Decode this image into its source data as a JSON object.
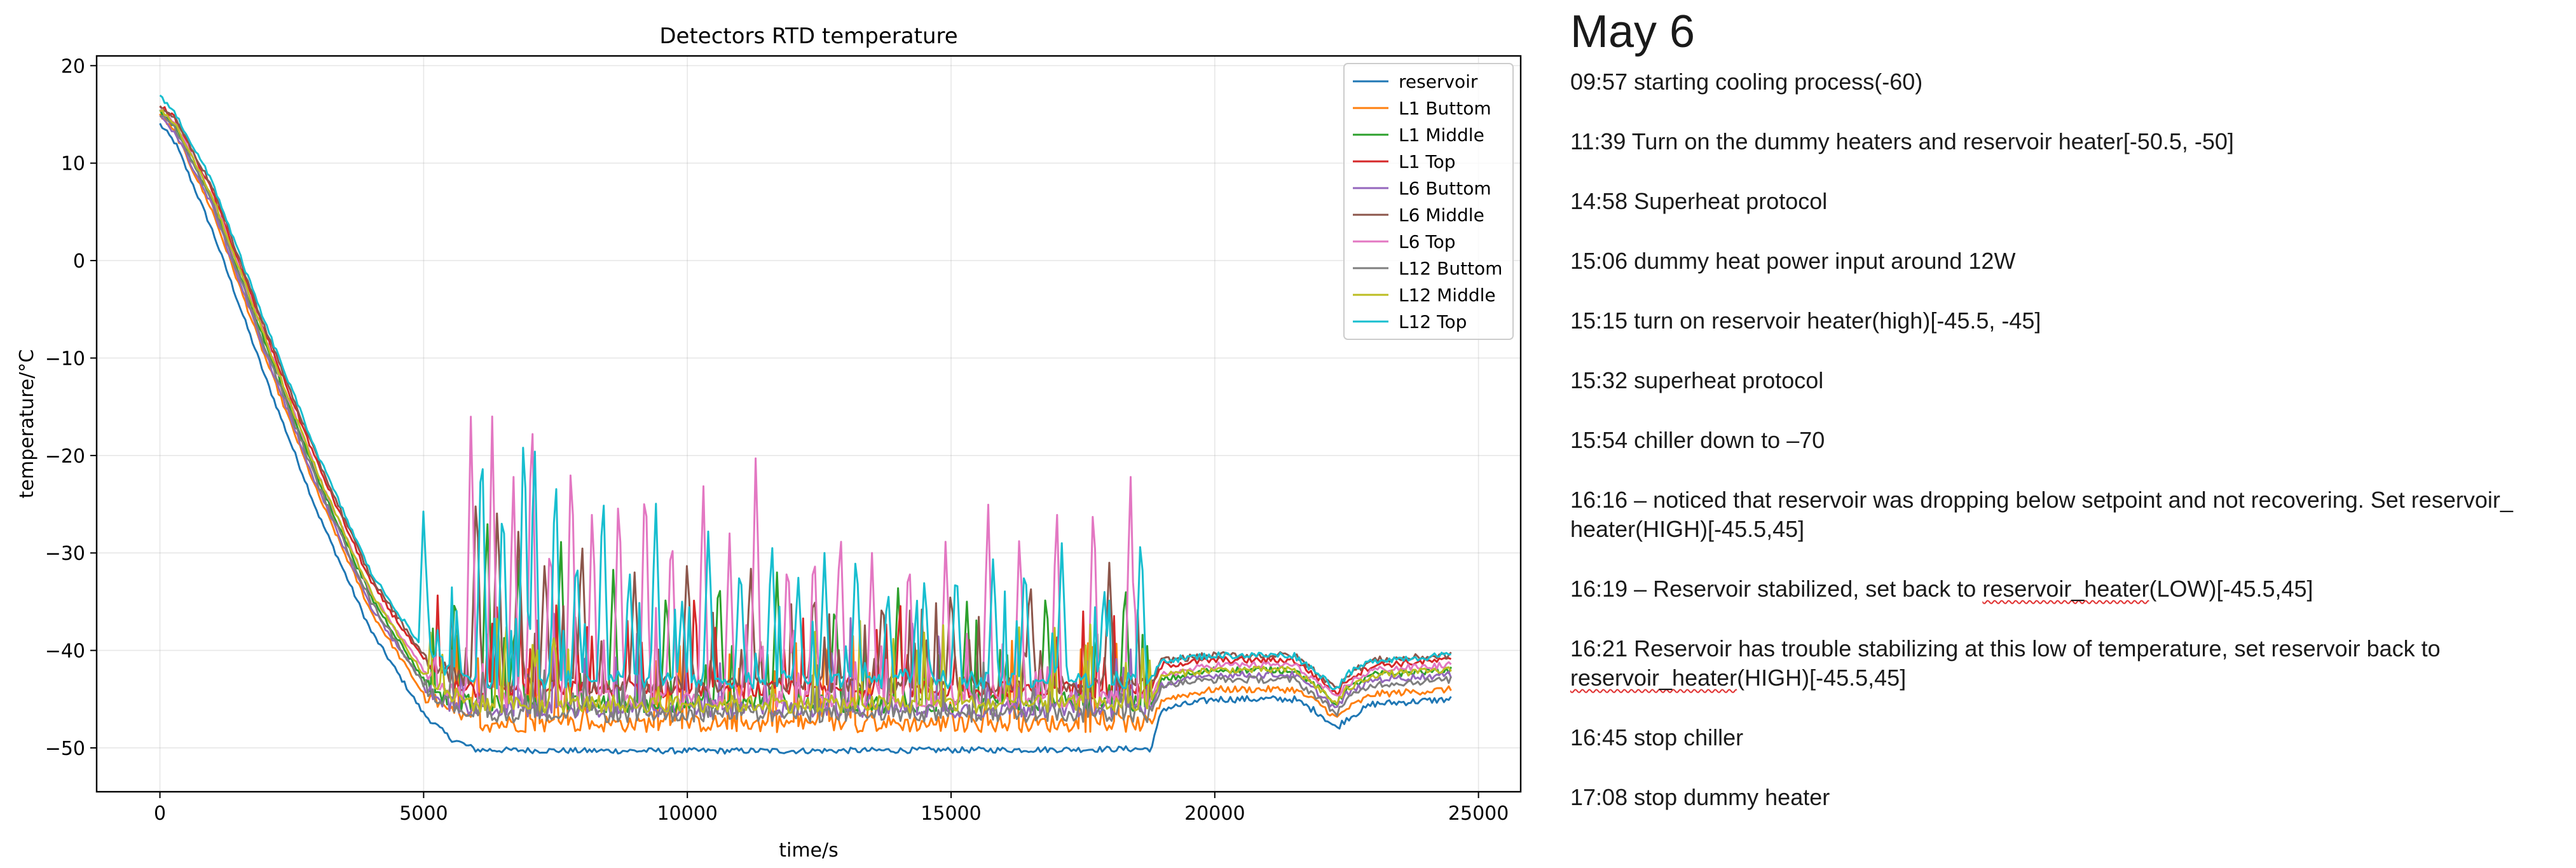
{
  "chart_data": {
    "type": "line",
    "title": "Detectors RTD temperature",
    "xlabel": "time/s",
    "ylabel": "temperature/$^\\circ$C",
    "xlim": [
      -1200,
      25800
    ],
    "ylim": [
      -54.5,
      21
    ],
    "xticks": [
      0,
      5000,
      10000,
      15000,
      20000,
      25000
    ],
    "yticks": [
      20,
      10,
      0,
      -10,
      -20,
      -30,
      -40,
      -50
    ],
    "xtick_labels": [
      "0",
      "5000",
      "10000",
      "15000",
      "20000",
      "25000"
    ],
    "ytick_labels": [
      "20",
      "10",
      "0",
      "−10",
      "−20",
      "−30",
      "−40",
      "−50"
    ],
    "grid": true,
    "legend_position": "top-right",
    "series": [
      {
        "name": "reservoir",
        "color": "#1f77b4",
        "x": [
          0,
          300,
          1000,
          2000,
          3000,
          4000,
          5000,
          5500,
          6000,
          8000,
          12000,
          16000,
          18800,
          19000,
          20000,
          21500,
          22000,
          22300,
          22500,
          23000,
          24500
        ],
        "y": [
          14,
          12,
          3,
          -12,
          -26,
          -38,
          -46.5,
          -49,
          -50.2,
          -50.3,
          -50.3,
          -50.2,
          -50.1,
          -46,
          -45,
          -45,
          -46.5,
          -48,
          -47,
          -45.5,
          -45
        ]
      },
      {
        "name": "L1 Buttom",
        "color": "#ff7f0e",
        "x": [
          0,
          300,
          1000,
          2000,
          3000,
          4000,
          5000,
          5500,
          6000,
          8000,
          12000,
          16000,
          18800,
          19000,
          20000,
          21500,
          22000,
          22300,
          22500,
          23000,
          24500
        ],
        "y": [
          15,
          13,
          5,
          -10,
          -24,
          -36,
          -44.5,
          -46.5,
          -47.5,
          -47.5,
          -47.5,
          -47.5,
          -47.5,
          -45,
          -44,
          -44,
          -45.5,
          -47,
          -46,
          -44.5,
          -44
        ]
      },
      {
        "name": "L1 Middle",
        "color": "#2ca02c",
        "x": [
          0,
          300,
          1000,
          2000,
          3000,
          4000,
          5000,
          5500,
          6000,
          8000,
          12000,
          16000,
          18800,
          19000,
          20000,
          21500,
          22000,
          22300,
          22500,
          23000,
          24500
        ],
        "y": [
          15.5,
          13.5,
          6,
          -8.5,
          -22.5,
          -34.5,
          -43,
          -45,
          -45.5,
          -45.5,
          -45.5,
          -45.5,
          -45.5,
          -43,
          -42,
          -42,
          -44,
          -45.5,
          -44,
          -42.5,
          -42
        ]
      },
      {
        "name": "L1 Top",
        "color": "#d62728",
        "x": [
          0,
          300,
          1000,
          2000,
          3000,
          4000,
          5000,
          5500,
          6000,
          8000,
          12000,
          16000,
          18800,
          19000,
          20000,
          21500,
          22000,
          22300,
          22500,
          23000,
          24500
        ],
        "y": [
          16,
          14.5,
          7,
          -7.5,
          -21,
          -33,
          -41,
          -43,
          -44,
          -44,
          -44,
          -44,
          -44,
          -41.5,
          -41,
          -41,
          -43,
          -44.5,
          -43,
          -41.5,
          -41
        ]
      },
      {
        "name": "L6 Buttom",
        "color": "#9467bd",
        "x": [
          0,
          300,
          1000,
          2000,
          3000,
          4000,
          5000,
          5500,
          6000,
          8000,
          12000,
          16000,
          18800,
          19000,
          20000,
          21500,
          22000,
          22300,
          22500,
          23000,
          24500
        ],
        "y": [
          15,
          13,
          5.5,
          -9.5,
          -23.5,
          -35.5,
          -43.5,
          -45.5,
          -46,
          -46,
          -46,
          -46,
          -46,
          -43.5,
          -42.5,
          -42.5,
          -44.5,
          -46,
          -44.5,
          -43,
          -42.5
        ]
      },
      {
        "name": "L6 Middle",
        "color": "#8c564b",
        "x": [
          0,
          300,
          1000,
          2000,
          3000,
          4000,
          5000,
          5500,
          6000,
          8000,
          12000,
          16000,
          18800,
          19000,
          20000,
          21500,
          22000,
          22300,
          22500,
          23000,
          24500
        ],
        "y": [
          16,
          14.5,
          7.5,
          -7,
          -20.5,
          -32.5,
          -40.5,
          -42.5,
          -43.5,
          -43.5,
          -43.5,
          -43.5,
          -43.5,
          -41,
          -40.5,
          -40.5,
          -42.5,
          -44,
          -42.5,
          -41,
          -40.5
        ]
      },
      {
        "name": "L6 Top",
        "color": "#e377c2",
        "x": [
          0,
          300,
          1000,
          2000,
          3000,
          4000,
          5000,
          5500,
          6000,
          8000,
          12000,
          16000,
          18800,
          19000,
          20000,
          21500,
          22000,
          22300,
          22500,
          23000,
          24500
        ],
        "y": [
          15.5,
          14,
          6.5,
          -8,
          -22,
          -34,
          -42,
          -44,
          -45,
          -45,
          -45,
          -45,
          -45,
          -42.5,
          -41.5,
          -41.5,
          -43.5,
          -45,
          -43.5,
          -42,
          -41.5
        ]
      },
      {
        "name": "L12 Buttom",
        "color": "#7f7f7f",
        "x": [
          0,
          300,
          1000,
          2000,
          3000,
          4000,
          5000,
          5500,
          6000,
          8000,
          12000,
          16000,
          18800,
          19000,
          20000,
          21500,
          22000,
          22300,
          22500,
          23000,
          24500
        ],
        "y": [
          15,
          13.5,
          6,
          -9,
          -23,
          -35,
          -43.5,
          -45.5,
          -46.5,
          -46.5,
          -46.5,
          -46.5,
          -46.5,
          -43.5,
          -43,
          -43,
          -45,
          -46.5,
          -45,
          -43.5,
          -43
        ]
      },
      {
        "name": "L12 Middle",
        "color": "#bcbd22",
        "x": [
          0,
          300,
          1000,
          2000,
          3000,
          4000,
          5000,
          5500,
          6000,
          8000,
          12000,
          16000,
          18800,
          19000,
          20000,
          21500,
          22000,
          22300,
          22500,
          23000,
          24500
        ],
        "y": [
          15.5,
          14,
          6.5,
          -8,
          -22,
          -34,
          -42.5,
          -44.5,
          -45.5,
          -45.5,
          -45.5,
          -45.5,
          -45.5,
          -42.5,
          -42,
          -42,
          -44,
          -45.5,
          -44,
          -42.5,
          -42
        ]
      },
      {
        "name": "L12 Top",
        "color": "#17becf",
        "x": [
          0,
          300,
          1000,
          2000,
          3000,
          4000,
          5000,
          5500,
          6000,
          8000,
          12000,
          16000,
          18800,
          19000,
          20000,
          21500,
          22000,
          22300,
          22500,
          23000,
          24500
        ],
        "y": [
          17,
          15,
          8,
          -6.5,
          -20,
          -32,
          -40,
          -42,
          -43,
          -43,
          -43,
          -43,
          -43,
          -41,
          -40.5,
          -40.5,
          -42.5,
          -44,
          -42.5,
          -41,
          -40.5
        ]
      }
    ],
    "spikes": [
      {
        "series": "L6 Top",
        "x": [
          5900,
          6300,
          6700,
          7050,
          7400,
          7800,
          8200,
          8700,
          9200,
          9700,
          10300,
          10800,
          11300,
          11900,
          12400,
          12900,
          13500,
          14200,
          14900,
          15700,
          16300,
          17000,
          17700,
          18400
        ],
        "y": [
          -14.5,
          -16,
          -21,
          -13,
          -27,
          -18,
          -24,
          -22,
          -20,
          -26,
          -22,
          -28,
          -19,
          -29,
          -28,
          -26,
          -30,
          -29,
          -28,
          -24,
          -27,
          -24,
          -23,
          -21
        ]
      },
      {
        "series": "L12 Top",
        "x": [
          5000,
          6100,
          6500,
          6900,
          7100,
          7500,
          7900,
          8400,
          8900,
          9400,
          9900,
          10400,
          11000,
          11600,
          12100,
          12600,
          13200,
          13800,
          14500,
          15100,
          15800,
          16400,
          17100,
          17900,
          18600
        ],
        "y": [
          -25,
          -16,
          -23,
          -15,
          -17,
          -20,
          -29,
          -22,
          -31,
          -24,
          -35,
          -27,
          -30,
          -28,
          -32,
          -30,
          -29,
          -33,
          -32,
          -31,
          -30,
          -30,
          -29,
          -33,
          -27
        ]
      },
      {
        "series": "L6 Middle",
        "x": [
          6000,
          6400,
          6800,
          7300,
          8000,
          9000,
          10000,
          11200,
          12400,
          13700,
          15000,
          16500,
          18000
        ],
        "y": [
          -22,
          -24,
          -27,
          -30,
          -28,
          -32,
          -30,
          -31,
          -33,
          -34,
          -33,
          -32,
          -31
        ]
      },
      {
        "series": "L1 Middle",
        "x": [
          5600,
          6200,
          6800,
          7600,
          8600,
          9600,
          10600,
          11700,
          12800,
          14000,
          15300,
          16800,
          18300
        ],
        "y": [
          -33,
          -25,
          -30,
          -28,
          -31,
          -33,
          -31,
          -32,
          -34,
          -33,
          -35,
          -33,
          -32
        ]
      }
    ]
  },
  "notes": {
    "title": "May 6",
    "entries": [
      {
        "text": "09:57 starting cooling process(-60)"
      },
      {
        "text": "11:39 Turn on the dummy heaters and reservoir heater[-50.5, -50]"
      },
      {
        "text": "14:58  Superheat protocol"
      },
      {
        "text": "15:06 dummy heat power input around 12W"
      },
      {
        "text": "15:15 turn on reservoir heater(high)[-45.5, -45]"
      },
      {
        "text": "15:32  superheat protocol"
      },
      {
        "text": "15:54  chiller down to –70"
      },
      {
        "text": "16:16 – noticed that reservoir was dropping below setpoint and not recovering. Set reservoir_ heater(HIGH)[-45.5,45]"
      },
      {
        "before": "16:19 – Reservoir stabilized, set back to ",
        "underlined": "reservoir_heater",
        "after": "(LOW)[-45.5,45]"
      },
      {
        "before": "16:21 Reservoir has trouble stabilizing at this low of temperature, set reservoir back to ",
        "underlined": "reservoir_heater",
        "after": "(HIGH)[-45.5,45]"
      },
      {
        "text": "16:45  stop chiller"
      },
      {
        "text": "17:08 stop dummy heater"
      }
    ]
  }
}
